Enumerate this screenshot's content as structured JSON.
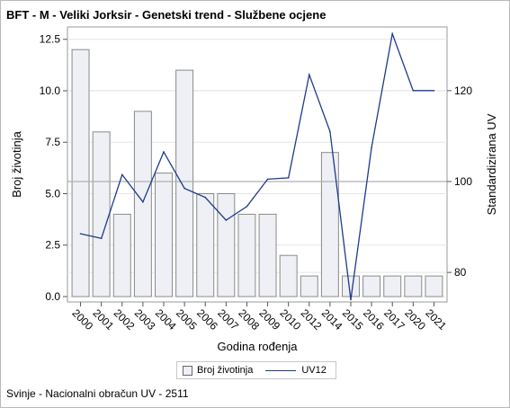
{
  "title": "BFT - M - Veliki Jorksir - Genetski trend - Službene ocjene",
  "footnote": "Svinje - Nacionalni obračun UV - 2511",
  "colors": {
    "bar_fill": "#eef0f5",
    "bar_stroke": "#8a8a8a",
    "line": "#1f3b8c",
    "grid": "#e6e6e6",
    "reference": "#b0b0b0"
  },
  "chart_data": {
    "type": "bar",
    "categories": [
      "2000",
      "2001",
      "2002",
      "2003",
      "2004",
      "2005",
      "2006",
      "2007",
      "2008",
      "2009",
      "2010",
      "2012",
      "2014",
      "2015",
      "2016",
      "2017",
      "2020",
      "2021"
    ],
    "series": [
      {
        "name": "Broj životinja",
        "type": "bar",
        "axis": "left",
        "values": [
          12,
          8,
          4,
          9,
          6,
          11,
          5,
          5,
          4,
          4,
          2,
          1,
          7,
          1,
          1,
          1,
          1,
          1
        ]
      },
      {
        "name": "UV12",
        "type": "line",
        "axis": "right",
        "values": [
          88.5,
          87.5,
          101.5,
          95.5,
          106.5,
          98.5,
          96.5,
          91.5,
          94.5,
          100.5,
          100.8,
          123.5,
          111,
          74,
          107.5,
          132.5,
          120,
          120
        ]
      }
    ],
    "xlabel": "Godina rođenja",
    "ylabel": "Broj životinja",
    "y2label": "Standardizirana UV",
    "ylim": [
      0,
      13
    ],
    "y_ticks": [
      "0.0",
      "2.5",
      "5.0",
      "7.5",
      "10.0",
      "12.5"
    ],
    "y2_ticks": [
      "80",
      "100",
      "120"
    ],
    "reference_line_y2": 100,
    "grid": true,
    "legend_position": "bottom"
  },
  "legend": {
    "bar_label": "Broj životinja",
    "line_label": "UV12"
  }
}
